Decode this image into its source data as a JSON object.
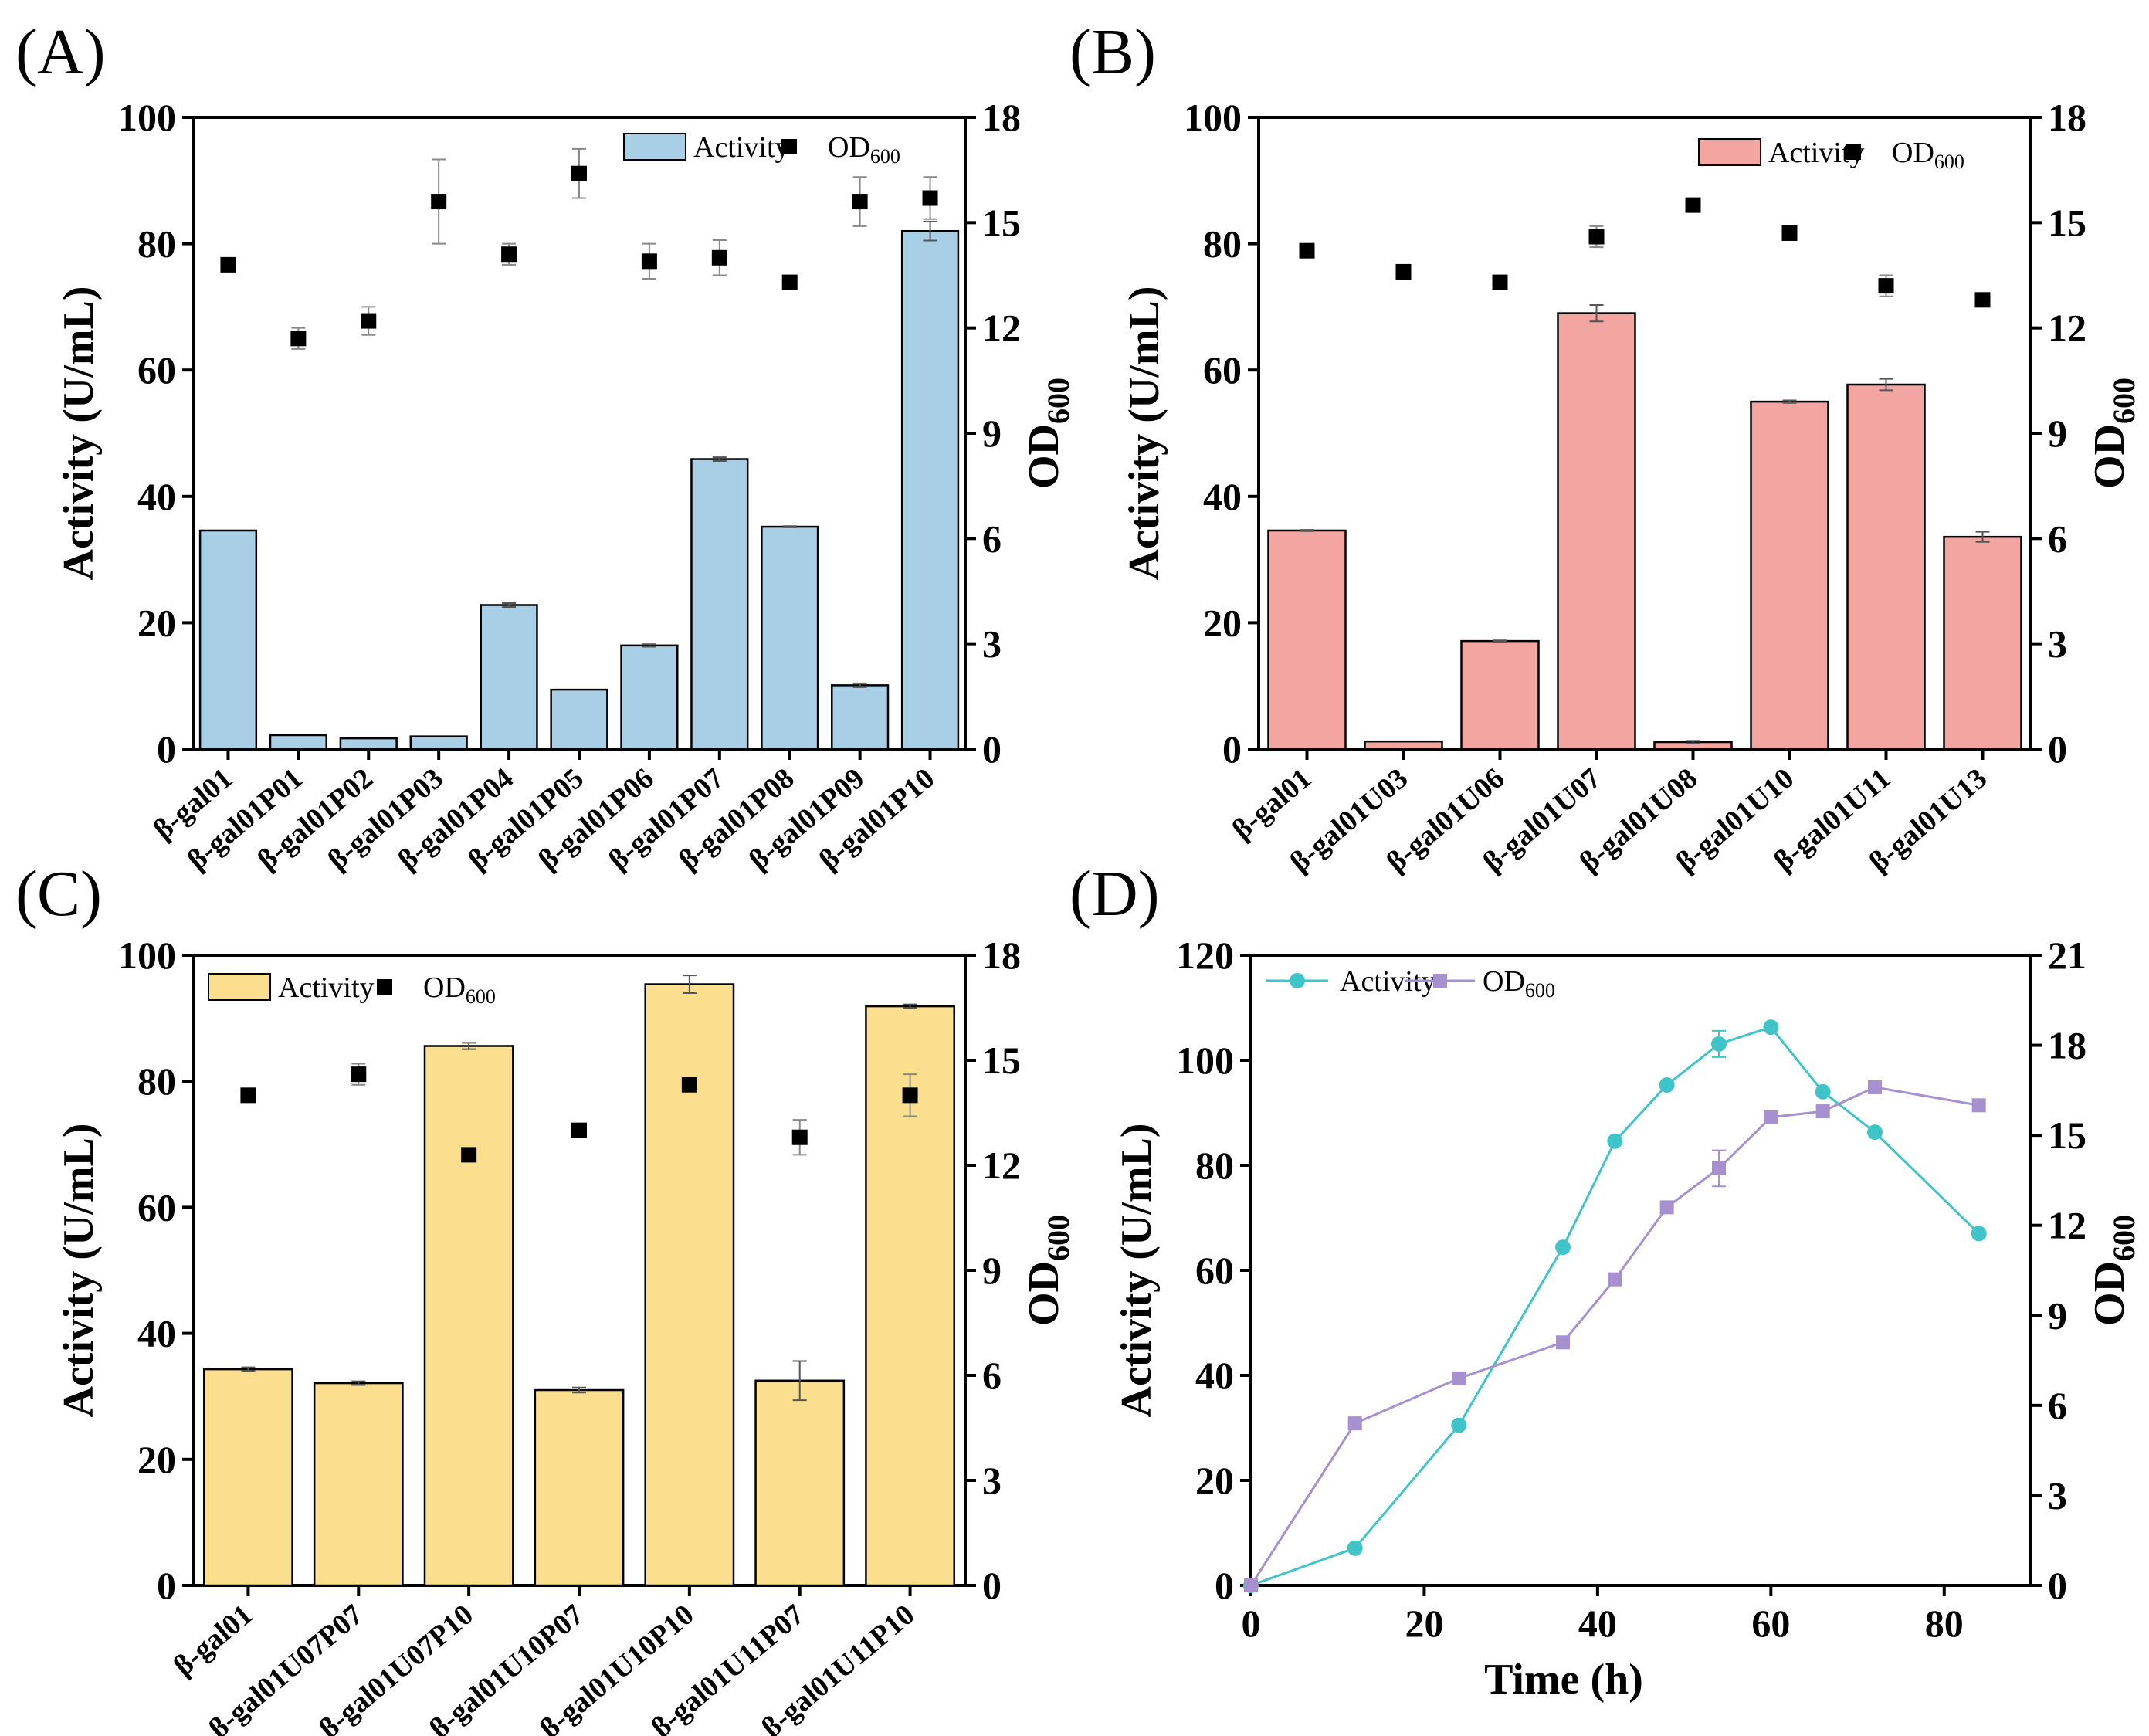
{
  "chart_data": [
    {
      "panel": "(A)",
      "type": "bar",
      "categories": [
        "β-gal01",
        "β-gal01P01",
        "β-gal01P02",
        "β-gal01P03",
        "β-gal01P04",
        "β-gal01P05",
        "β-gal01P06",
        "β-gal01P07",
        "β-gal01P08",
        "β-gal01P09",
        "β-gal01P10"
      ],
      "bar_color": "#a9cfe6",
      "ylabel": "Activity (U/mL)",
      "y2label": "OD",
      "y2label_sub": "600",
      "ylim": [
        0,
        100
      ],
      "y_ticks": [
        0,
        20,
        40,
        60,
        80,
        100
      ],
      "y2lim": [
        0,
        18
      ],
      "y2_ticks": [
        0,
        3,
        6,
        9,
        12,
        15,
        18
      ],
      "series": [
        {
          "name": "Activity",
          "type": "bar",
          "values": [
            34.6,
            2.2,
            1.7,
            2.0,
            22.8,
            9.4,
            16.4,
            45.9,
            35.2,
            10.1,
            82.0
          ],
          "errors": [
            0.0,
            0.0,
            0.0,
            0.0,
            0.3,
            0.0,
            0.2,
            0.3,
            0.1,
            0.3,
            1.5
          ]
        },
        {
          "name": "OD",
          "name_sub": "600",
          "type": "scatter",
          "axis": "right",
          "values": [
            13.8,
            11.7,
            12.2,
            15.6,
            14.1,
            16.4,
            13.9,
            14.0,
            13.3,
            15.6,
            15.7
          ],
          "errors": [
            0.0,
            0.3,
            0.4,
            1.2,
            0.3,
            0.7,
            0.5,
            0.5,
            0.0,
            0.7,
            0.6
          ]
        }
      ],
      "legend": {
        "activity": "Activity",
        "od": "OD",
        "od_sub": "600"
      }
    },
    {
      "panel": "(B)",
      "type": "bar",
      "categories": [
        "β-gal01",
        "β-gal01U03",
        "β-gal01U06",
        "β-gal01U07",
        "β-gal01U08",
        "β-gal01U10",
        "β-gal01U11",
        "β-gal01U13"
      ],
      "bar_color": "#f3a5a1",
      "ylabel": "Activity (U/mL)",
      "y2label": "OD",
      "y2label_sub": "600",
      "ylim": [
        0,
        100
      ],
      "y_ticks": [
        0,
        20,
        40,
        60,
        80,
        100
      ],
      "y2lim": [
        0,
        18
      ],
      "y2_ticks": [
        0,
        3,
        6,
        9,
        12,
        15,
        18
      ],
      "series": [
        {
          "name": "Activity",
          "type": "bar",
          "values": [
            34.6,
            1.2,
            17.1,
            69.0,
            1.1,
            55.0,
            57.7,
            33.6
          ],
          "errors": [
            0.1,
            0.0,
            0.1,
            1.3,
            0.2,
            0.2,
            0.9,
            0.8
          ]
        },
        {
          "name": "OD",
          "name_sub": "600",
          "type": "scatter",
          "axis": "right",
          "values": [
            14.2,
            13.6,
            13.3,
            14.6,
            15.5,
            14.7,
            13.2,
            12.8
          ],
          "errors": [
            0.0,
            0.2,
            0.0,
            0.3,
            0.0,
            0.0,
            0.3,
            0.0
          ]
        }
      ],
      "legend": {
        "activity": "Activity",
        "od": "OD",
        "od_sub": "600"
      }
    },
    {
      "panel": "(C)",
      "type": "bar",
      "categories": [
        "β-gal01",
        "β-gal01U07P07",
        "β-gal01U07P10",
        "β-gal01U10P07",
        "β-gal01U10P10",
        "β-gal01U11P07",
        "β-gal01U11P10"
      ],
      "bar_color": "#fbdf8f",
      "ylabel": "Activity (U/mL)",
      "y2label": "OD",
      "y2label_sub": "600",
      "ylim": [
        0,
        100
      ],
      "y_ticks": [
        0,
        20,
        40,
        60,
        80,
        100
      ],
      "y2lim": [
        0,
        18
      ],
      "y2_ticks": [
        0,
        3,
        6,
        9,
        12,
        15,
        18
      ],
      "series": [
        {
          "name": "Activity",
          "type": "bar",
          "values": [
            34.3,
            32.1,
            85.6,
            31.0,
            95.4,
            32.5,
            91.9
          ],
          "errors": [
            0.3,
            0.3,
            0.5,
            0.4,
            1.4,
            3.1,
            0.3
          ]
        },
        {
          "name": "OD",
          "name_sub": "600",
          "type": "scatter",
          "axis": "right",
          "values": [
            14.0,
            14.6,
            12.3,
            13.0,
            14.3,
            12.8,
            14.0
          ],
          "errors": [
            0.0,
            0.3,
            0.0,
            0.0,
            0.0,
            0.5,
            0.6
          ]
        }
      ],
      "legend": {
        "activity": "Activity",
        "od": "OD",
        "od_sub": "600"
      }
    },
    {
      "panel": "(D)",
      "type": "line",
      "xlabel": "Time (h)",
      "ylabel": "Activity (U/mL)",
      "y2label": "OD",
      "y2label_sub": "600",
      "xlim": [
        0,
        90
      ],
      "x_ticks": [
        0,
        20,
        40,
        60,
        80
      ],
      "ylim": [
        0,
        120
      ],
      "y_ticks": [
        0,
        20,
        40,
        60,
        80,
        100,
        120
      ],
      "y2lim": [
        0,
        21
      ],
      "y2_ticks": [
        0,
        3,
        6,
        9,
        12,
        15,
        18,
        21
      ],
      "series": [
        {
          "name": "Activity",
          "color": "#3fc4c9",
          "marker": "circle",
          "axis": "left",
          "x": [
            0,
            12,
            24,
            36,
            42,
            48,
            54,
            60,
            66,
            72,
            84
          ],
          "y": [
            0,
            7.1,
            30.5,
            64.4,
            84.6,
            95.3,
            103.1,
            106.3,
            94.0,
            86.3,
            67.0
          ],
          "errors": [
            0,
            0,
            0,
            0,
            0,
            0,
            2.5,
            0.5,
            0,
            0,
            0
          ]
        },
        {
          "name": "OD",
          "name_sub": "600",
          "color": "#a690cf",
          "marker": "square",
          "axis": "right",
          "x": [
            0,
            12,
            24,
            36,
            42,
            48,
            54,
            60,
            66,
            72,
            84
          ],
          "y": [
            0,
            5.4,
            6.9,
            8.1,
            10.2,
            12.6,
            13.9,
            15.6,
            15.8,
            16.6,
            16.0
          ],
          "errors": [
            0,
            0,
            0,
            0,
            0,
            0,
            0.6,
            0,
            0,
            0,
            0
          ]
        }
      ],
      "legend": {
        "activity": "Activity",
        "od": "OD",
        "od_sub": "600"
      }
    }
  ]
}
